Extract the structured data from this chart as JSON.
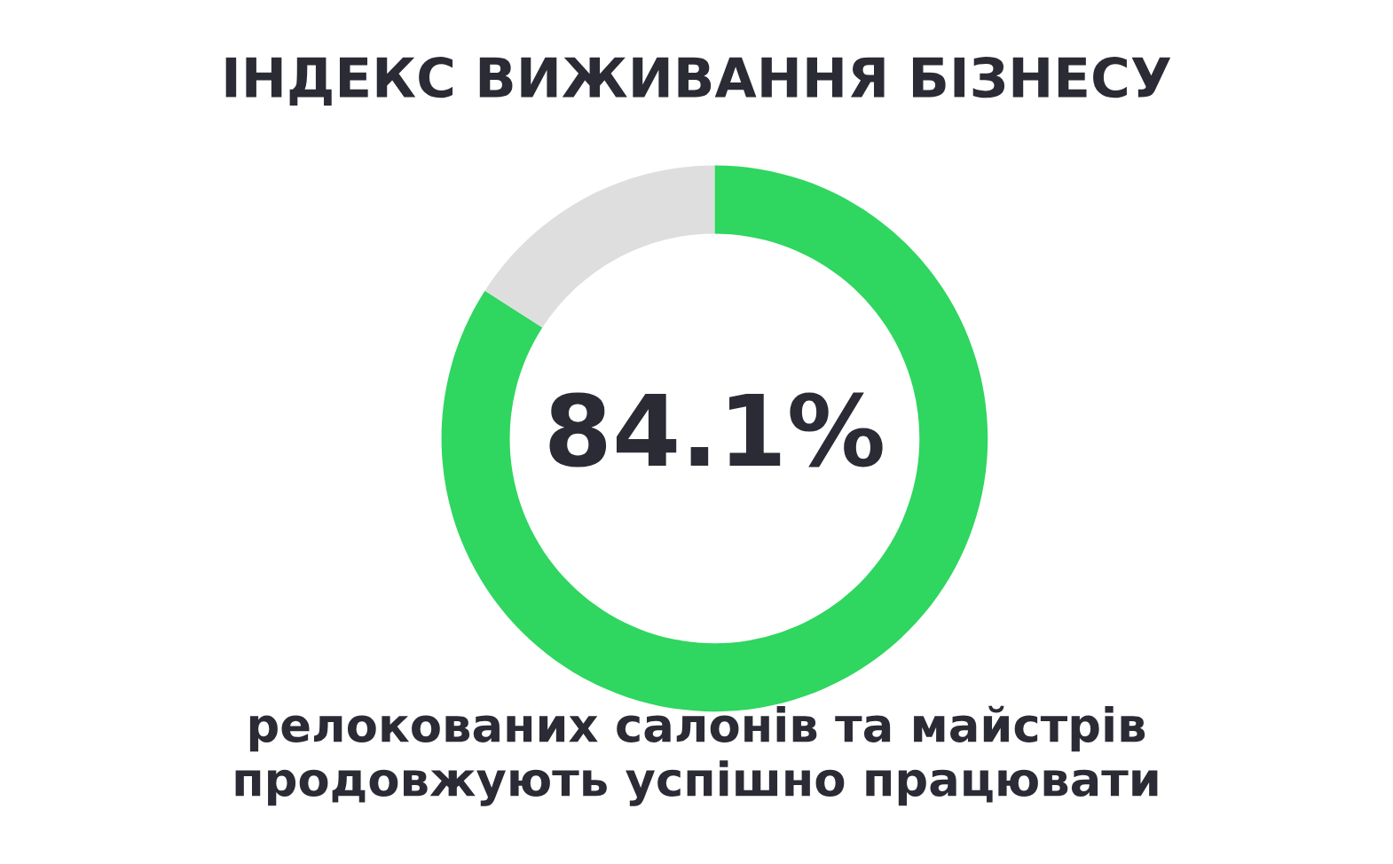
{
  "chart_data": {
    "type": "donut",
    "title": "ІНДЕКС ВИЖИВАННЯ БІЗНЕСУ",
    "categories": [
      null,
      null
    ],
    "values": [
      84.1,
      15.9
    ],
    "colors": [
      "#2fd65f",
      "#dedede"
    ],
    "value_labels": [
      "84.1%",
      null
    ],
    "legend": false,
    "annotations": [
      "релокованих салонів та майстрів\nпродовжують успішно працювати"
    ]
  }
}
